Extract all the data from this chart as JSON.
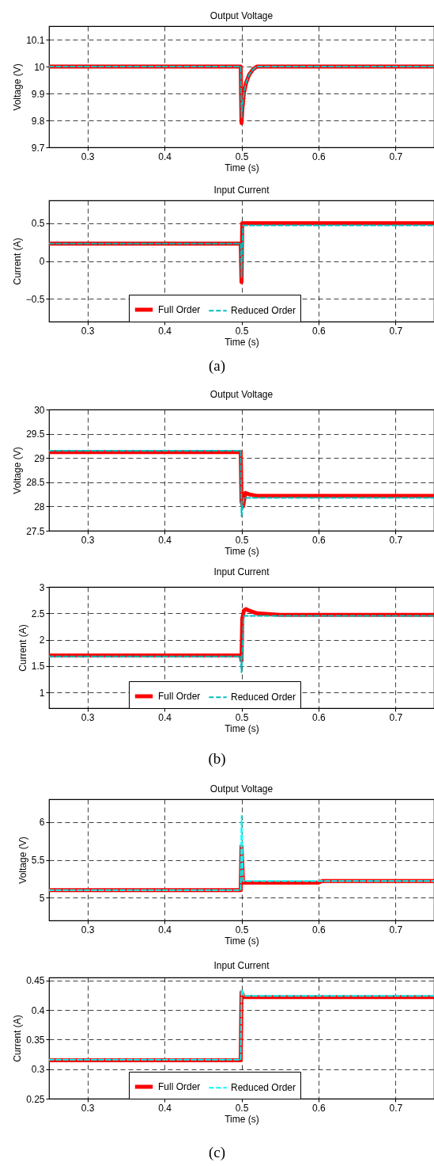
{
  "chart_data": [
    {
      "type": "line",
      "title": "Output Voltage",
      "xlabel": "Time (s)",
      "ylabel": "Voltage (V)",
      "xlim": [
        0.25,
        0.75
      ],
      "xticks": [
        0.3,
        0.4,
        0.5,
        0.6,
        0.7
      ],
      "ylim": [
        9.7,
        10.15
      ],
      "yticks": [
        9.7,
        9.8,
        9.9,
        10,
        10.1
      ],
      "grid": true,
      "legend": false,
      "series": [
        {
          "color": "#ff0000",
          "line_style": "solid",
          "x": [
            0.25,
            0.499,
            0.5,
            0.501,
            0.503,
            0.506,
            0.51,
            0.515,
            0.52,
            0.75
          ],
          "values": [
            10,
            10,
            9.79,
            9.84,
            9.9,
            9.94,
            9.97,
            9.99,
            10,
            10
          ]
        },
        {
          "color": "#00bfbf",
          "line_style": "dashed",
          "x": [
            0.25,
            0.499,
            0.5,
            0.501,
            0.503,
            0.506,
            0.51,
            0.515,
            0.52,
            0.75
          ],
          "values": [
            10,
            10,
            9.81,
            9.85,
            9.9,
            9.94,
            9.97,
            9.99,
            10,
            10
          ]
        }
      ]
    },
    {
      "type": "line",
      "title": "Input Current",
      "xlabel": "Time (s)",
      "ylabel": "Current (A)",
      "xlim": [
        0.25,
        0.75
      ],
      "xticks": [
        0.3,
        0.4,
        0.5,
        0.6,
        0.7
      ],
      "ylim": [
        -0.8,
        0.8
      ],
      "yticks": [
        -0.5,
        0,
        0.5
      ],
      "grid": true,
      "legend": "bottom",
      "annotations": [
        "(a)"
      ],
      "series": [
        {
          "name": "Full Order",
          "color": "#ff0000",
          "line_style": "solid",
          "x": [
            0.25,
            0.499,
            0.5,
            0.501,
            0.75
          ],
          "values": [
            0.23,
            0.23,
            -0.28,
            0.5,
            0.5
          ]
        },
        {
          "name": "Reduced Order",
          "color": "#00bfbf",
          "line_style": "dashed",
          "x": [
            0.25,
            0.499,
            0.5,
            0.502,
            0.75
          ],
          "values": [
            0.23,
            0.23,
            -0.22,
            0.47,
            0.47
          ]
        }
      ]
    },
    {
      "type": "line",
      "title": "Output Voltage",
      "xlabel": "Time (s)",
      "ylabel": "Voltage (V)",
      "xlim": [
        0.25,
        0.75
      ],
      "xticks": [
        0.3,
        0.4,
        0.5,
        0.6,
        0.7
      ],
      "ylim": [
        27.5,
        30
      ],
      "yticks": [
        27.5,
        28,
        28.5,
        29,
        29.5,
        30
      ],
      "grid": true,
      "legend": false,
      "series": [
        {
          "color": "#ff0000",
          "line_style": "solid",
          "x": [
            0.25,
            0.499,
            0.5,
            0.502,
            0.505,
            0.51,
            0.52,
            0.75
          ],
          "values": [
            29.12,
            29.12,
            28.1,
            28.0,
            28.28,
            28.25,
            28.22,
            28.22
          ]
        },
        {
          "color": "#00bfbf",
          "line_style": "dashed",
          "x": [
            0.25,
            0.499,
            0.5,
            0.503,
            0.75
          ],
          "values": [
            29.15,
            29.15,
            27.8,
            28.18,
            28.18
          ]
        }
      ]
    },
    {
      "type": "line",
      "title": "Input Current",
      "xlabel": "Time (s)",
      "ylabel": "Current (A)",
      "xlim": [
        0.25,
        0.75
      ],
      "xticks": [
        0.3,
        0.4,
        0.5,
        0.6,
        0.7
      ],
      "ylim": [
        0.7,
        3
      ],
      "yticks": [
        1,
        1.5,
        2,
        2.5,
        3
      ],
      "grid": true,
      "legend": "bottom",
      "annotations": [
        "(b)"
      ],
      "series": [
        {
          "name": "Full Order",
          "color": "#ff0000",
          "line_style": "solid",
          "x": [
            0.25,
            0.499,
            0.5,
            0.501,
            0.503,
            0.506,
            0.51,
            0.52,
            0.55,
            0.75
          ],
          "values": [
            1.7,
            1.7,
            1.6,
            2.4,
            2.55,
            2.58,
            2.55,
            2.5,
            2.47,
            2.47
          ]
        },
        {
          "name": "Reduced Order",
          "color": "#00bfbf",
          "line_style": "dashed",
          "x": [
            0.25,
            0.499,
            0.5,
            0.503,
            0.75
          ],
          "values": [
            1.68,
            1.68,
            1.38,
            2.45,
            2.45
          ]
        }
      ]
    },
    {
      "type": "line",
      "title": "Output Voltage",
      "xlabel": "Time (s)",
      "ylabel": "Voltage (V)",
      "xlim": [
        0.25,
        0.75
      ],
      "xticks": [
        0.3,
        0.4,
        0.5,
        0.6,
        0.7
      ],
      "ylim": [
        4.7,
        6.3
      ],
      "yticks": [
        5,
        5.5,
        6
      ],
      "grid": true,
      "legend": false,
      "series": [
        {
          "color": "#ff0000",
          "line_style": "solid",
          "x": [
            0.25,
            0.499,
            0.5,
            0.502,
            0.6,
            0.605,
            0.75
          ],
          "values": [
            5.1,
            5.1,
            5.68,
            5.2,
            5.2,
            5.22,
            5.22
          ]
        },
        {
          "color": "#00ffff",
          "line_style": "dashed",
          "x": [
            0.25,
            0.499,
            0.5,
            0.502,
            0.75
          ],
          "values": [
            5.1,
            5.1,
            6.08,
            5.22,
            5.22
          ]
        }
      ]
    },
    {
      "type": "line",
      "title": "Input Current",
      "xlabel": "Time (s)",
      "ylabel": "Current (A)",
      "xlim": [
        0.25,
        0.75
      ],
      "xticks": [
        0.3,
        0.4,
        0.5,
        0.6,
        0.7
      ],
      "ylim": [
        0.25,
        0.455
      ],
      "yticks": [
        0.25,
        0.3,
        0.35,
        0.4,
        0.45
      ],
      "grid": true,
      "legend": "bottom",
      "annotations": [
        "(c)"
      ],
      "series": [
        {
          "name": "Full Order",
          "color": "#ff0000",
          "line_style": "solid",
          "x": [
            0.25,
            0.499,
            0.5,
            0.503,
            0.75
          ],
          "values": [
            0.315,
            0.315,
            0.43,
            0.422,
            0.422
          ]
        },
        {
          "name": "Reduced Order",
          "color": "#00ffff",
          "line_style": "dashed",
          "x": [
            0.25,
            0.499,
            0.5,
            0.503,
            0.75
          ],
          "values": [
            0.316,
            0.316,
            0.435,
            0.424,
            0.424
          ]
        }
      ]
    }
  ]
}
